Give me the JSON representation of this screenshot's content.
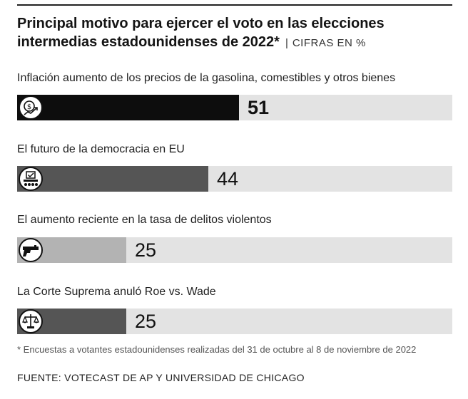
{
  "chart_data": {
    "type": "bar",
    "orientation": "horizontal",
    "title": "Principal motivo para ejercer el voto en las elecciones intermedias estadounidenses de 2022*",
    "units_label": "CIFRAS EN  %",
    "categories": [
      "Inflación aumento de los precios de la gasolina, comestibles y otros bienes",
      "El futuro de la democracia en EU",
      "El aumento reciente en la tasa de delitos violentos",
      "La Corte Suprema anuló Roe vs. Wade"
    ],
    "values": [
      51,
      44,
      25,
      25
    ],
    "value_labels": [
      "51",
      "44",
      "25",
      "25"
    ],
    "colors": [
      "#0d0d0d",
      "#555555",
      "#b3b3b3",
      "#555555"
    ],
    "icons": [
      "money-growth-icon",
      "ballot-box-icon",
      "handgun-icon",
      "scales-justice-icon"
    ],
    "xlim": [
      0,
      100
    ],
    "footnote": "* Encuestas a votantes estadounidenses realizadas del 31 de octubre al 8 de noviembre de 2022",
    "source": "FUENTE:  VOTECAST DE AP Y UNIVERSIDAD DE CHICAGO"
  }
}
